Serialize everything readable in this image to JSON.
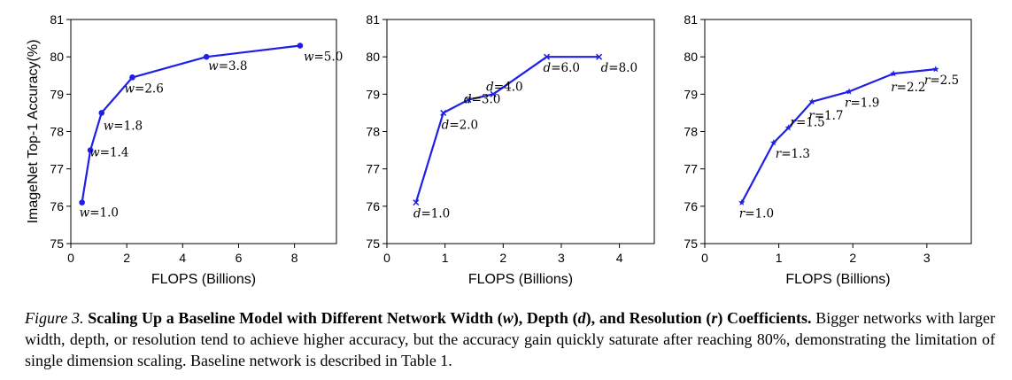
{
  "chart_data": [
    {
      "type": "line",
      "variable": "w",
      "xlabel": "FLOPS (Billions)",
      "ylabel": "ImageNet Top-1 Accuracy(%)",
      "xlim": [
        0,
        9.5
      ],
      "ylim": [
        75,
        81
      ],
      "xticks": [
        0,
        2,
        4,
        6,
        8
      ],
      "yticks": [
        75,
        76,
        77,
        78,
        79,
        80,
        81
      ],
      "marker": "circle",
      "color": "#1f1fe6",
      "points": [
        {
          "x": 0.4,
          "y": 76.1,
          "label": "1.0"
        },
        {
          "x": 0.7,
          "y": 77.5,
          "label": "1.4"
        },
        {
          "x": 1.1,
          "y": 78.5,
          "label": "1.8"
        },
        {
          "x": 2.2,
          "y": 79.45,
          "label": "2.6"
        },
        {
          "x": 4.85,
          "y": 80.0,
          "label": "3.8"
        },
        {
          "x": 8.2,
          "y": 80.3,
          "label": "5.0"
        }
      ]
    },
    {
      "type": "line",
      "variable": "d",
      "xlabel": "FLOPS (Billions)",
      "ylabel": "",
      "xlim": [
        0,
        4.6
      ],
      "ylim": [
        75,
        81
      ],
      "xticks": [
        0,
        1,
        2,
        3,
        4
      ],
      "yticks": [
        75,
        76,
        77,
        78,
        79,
        80,
        81
      ],
      "marker": "x",
      "color": "#1f1fe6",
      "points": [
        {
          "x": 0.5,
          "y": 76.1,
          "label": "1.0"
        },
        {
          "x": 0.97,
          "y": 78.5,
          "label": "2.0"
        },
        {
          "x": 1.4,
          "y": 78.85,
          "label": "3.0"
        },
        {
          "x": 1.83,
          "y": 79.0,
          "label": "4.0"
        },
        {
          "x": 2.75,
          "y": 80.0,
          "label": "6.0"
        },
        {
          "x": 3.65,
          "y": 80.0,
          "label": "8.0"
        }
      ]
    },
    {
      "type": "line",
      "variable": "r",
      "xlabel": "FLOPS (Billions)",
      "ylabel": "",
      "xlim": [
        0,
        3.6
      ],
      "ylim": [
        75,
        81
      ],
      "xticks": [
        0,
        1,
        2,
        3
      ],
      "yticks": [
        75,
        76,
        77,
        78,
        79,
        80,
        81
      ],
      "marker": "star",
      "color": "#1f1fe6",
      "points": [
        {
          "x": 0.5,
          "y": 76.1,
          "label": "1.0"
        },
        {
          "x": 0.93,
          "y": 77.7,
          "label": "1.3"
        },
        {
          "x": 1.13,
          "y": 78.1,
          "label": "1.5"
        },
        {
          "x": 1.45,
          "y": 78.8,
          "label": "1.7"
        },
        {
          "x": 1.95,
          "y": 79.07,
          "label": "1.9"
        },
        {
          "x": 2.55,
          "y": 79.55,
          "label": "2.2"
        },
        {
          "x": 3.12,
          "y": 79.67,
          "label": "2.5"
        }
      ]
    }
  ],
  "caption": {
    "figure_label": "Figure 3.",
    "title_parts": [
      "Scaling Up a Baseline Model with Different Network Width (",
      "w",
      "), Depth (",
      "d",
      "), and Resolution (",
      "r",
      ") Coefficients."
    ],
    "body": "Bigger networks with larger width, depth, or resolution tend to achieve higher accuracy, but the accuracy gain quickly saturate after reaching 80%, demonstrating the limitation of single dimension scaling. Baseline network is described in Table 1."
  }
}
